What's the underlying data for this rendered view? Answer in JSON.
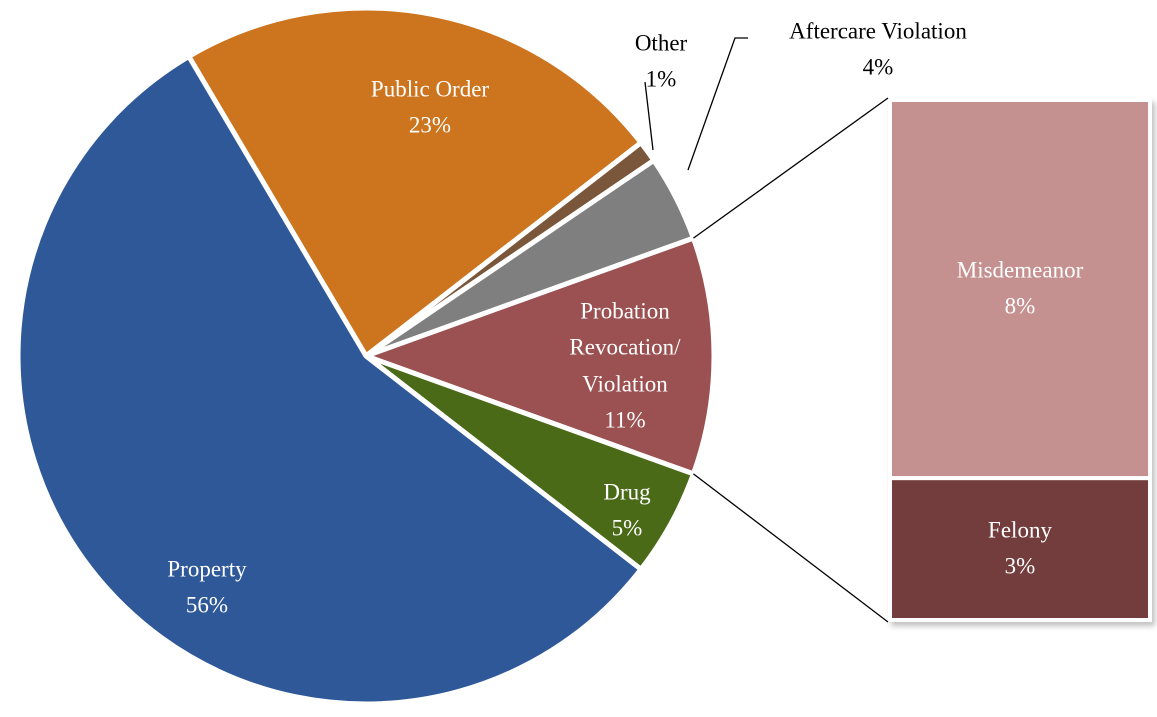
{
  "chart_data": {
    "type": "pie-of-bar",
    "categories": [
      "Public Order",
      "Other",
      "Aftercare Violation",
      "Probation Revocation/ Violation",
      "Drug",
      "Property"
    ],
    "values": [
      23,
      1,
      4,
      11,
      5,
      56
    ],
    "value_labels": [
      "23%",
      "1%",
      "4%",
      "11%",
      "5%",
      "56%"
    ],
    "colors": [
      "#cc741e",
      "#7a573a",
      "#7f7f7f",
      "#9b5152",
      "#4a6a17",
      "#2e5897"
    ],
    "breakdown": {
      "categories": [
        "Misdemeanor",
        "Felony"
      ],
      "values": [
        8,
        3
      ],
      "value_labels": [
        "8%",
        "3%"
      ],
      "colors": [
        "#c49190",
        "#733c3d"
      ]
    }
  }
}
